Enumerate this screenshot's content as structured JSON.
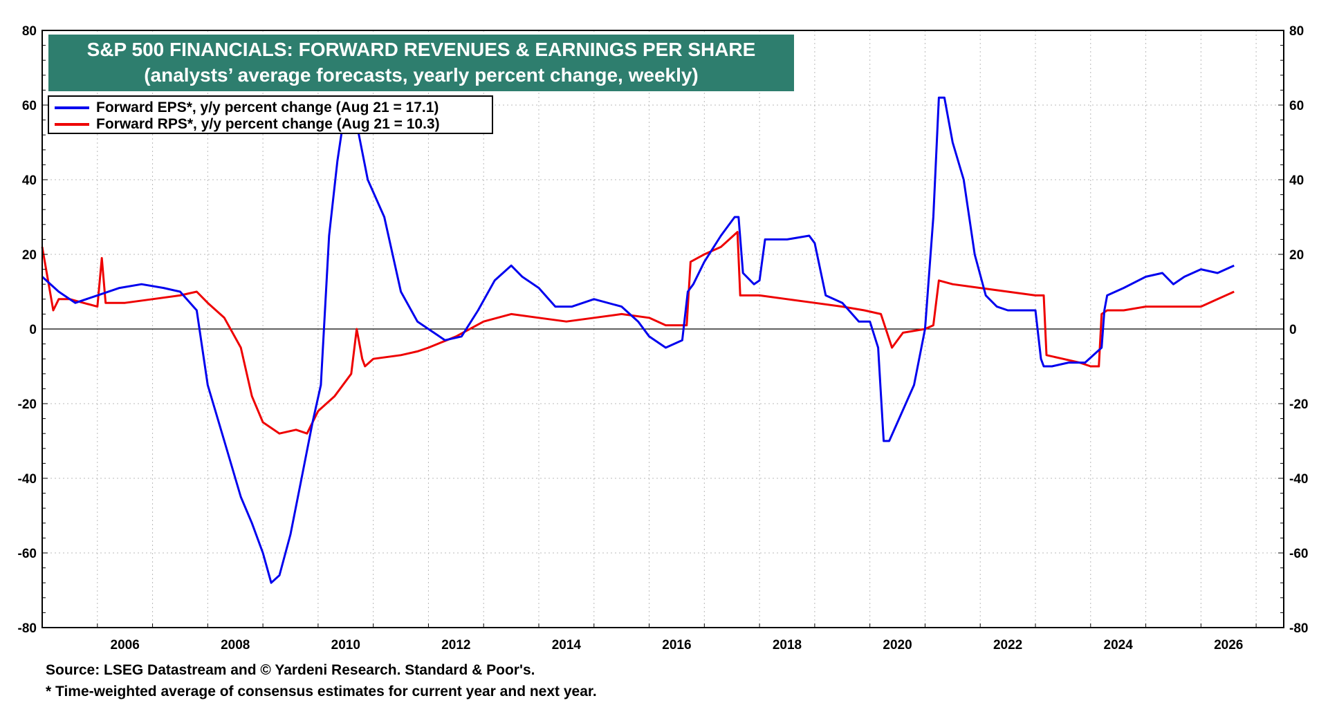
{
  "title": {
    "line1": "S&P 500 FINANCIALS: FORWARD REVENUES & EARNINGS PER SHARE",
    "line2": "(analysts’ average forecasts, yearly percent change, weekly)"
  },
  "legend": [
    {
      "label": "Forward EPS*, y/y percent change (Aug 21 = 17.1)",
      "color": "#0000ee"
    },
    {
      "label": "Forward RPS*, y/y percent change (Aug 21 = 10.3)",
      "color": "#ee0000"
    }
  ],
  "footnotes": {
    "source": "Source: LSEG Datastream and © Yardeni Research. Standard & Poor's.",
    "note": "* Time-weighted average of consensus estimates for current year and next year."
  },
  "chart_data": {
    "type": "line",
    "xlim": [
      2005.0,
      2027.5
    ],
    "ylim": [
      -80,
      80
    ],
    "x_ticks": [
      "2006",
      "2008",
      "2010",
      "2012",
      "2014",
      "2016",
      "2018",
      "2020",
      "2022",
      "2024",
      "2026"
    ],
    "y_ticks_left": [
      "80",
      "60",
      "40",
      "20",
      "0",
      "-20",
      "-40",
      "-60",
      "-80"
    ],
    "y_ticks_right": [
      "80",
      "60",
      "40",
      "20",
      "0",
      "-20",
      "-40",
      "-60",
      "-80"
    ],
    "grid": true,
    "zero_line": true,
    "legend_position": "top-left",
    "series": [
      {
        "name": "Forward EPS*, y/y percent change (Aug 21 = 17.1)",
        "color": "#0000ee",
        "x": [
          2005.0,
          2005.3,
          2005.6,
          2006.0,
          2006.4,
          2006.8,
          2007.2,
          2007.5,
          2007.8,
          2008.0,
          2008.3,
          2008.6,
          2008.8,
          2009.0,
          2009.15,
          2009.3,
          2009.5,
          2009.7,
          2009.9,
          2010.05,
          2010.2,
          2010.35,
          2010.5,
          2010.7,
          2010.9,
          2011.2,
          2011.5,
          2011.8,
          2012.0,
          2012.3,
          2012.6,
          2012.9,
          2013.2,
          2013.5,
          2013.7,
          2014.0,
          2014.3,
          2014.6,
          2015.0,
          2015.5,
          2015.8,
          2016.0,
          2016.3,
          2016.6,
          2016.7,
          2016.8,
          2017.0,
          2017.3,
          2017.55,
          2017.62,
          2017.7,
          2017.9,
          2018.0,
          2018.1,
          2018.5,
          2018.9,
          2019.0,
          2019.2,
          2019.5,
          2019.8,
          2020.0,
          2020.15,
          2020.25,
          2020.35,
          2020.5,
          2020.8,
          2021.0,
          2021.15,
          2021.25,
          2021.35,
          2021.5,
          2021.7,
          2021.9,
          2022.1,
          2022.3,
          2022.5,
          2022.8,
          2023.0,
          2023.1,
          2023.15,
          2023.3,
          2023.6,
          2023.9,
          2024.2,
          2024.25,
          2024.3,
          2024.6,
          2025.0,
          2025.3,
          2025.5,
          2025.7,
          2026.0,
          2026.3,
          2026.6
        ],
        "values": [
          14,
          10,
          7,
          9,
          11,
          12,
          11,
          10,
          5,
          -15,
          -30,
          -45,
          -52,
          -60,
          -68,
          -66,
          -55,
          -40,
          -25,
          -15,
          25,
          45,
          60,
          55,
          40,
          30,
          10,
          2,
          0,
          -3,
          -2,
          5,
          13,
          17,
          14,
          11,
          6,
          6,
          8,
          6,
          2,
          -2,
          -5,
          -3,
          10,
          12,
          18,
          25,
          30,
          30,
          15,
          12,
          13,
          24,
          24,
          25,
          23,
          9,
          7,
          2,
          2,
          -5,
          -30,
          -30,
          -25,
          -15,
          0,
          30,
          62,
          62,
          50,
          40,
          20,
          9,
          6,
          5,
          5,
          5,
          -8,
          -10,
          -10,
          -9,
          -9,
          -5,
          5,
          9,
          11,
          14,
          15,
          12,
          14,
          16,
          15,
          17
        ]
      },
      {
        "name": "Forward RPS*, y/y percent change (Aug 21 = 10.3)",
        "color": "#ee0000",
        "x": [
          2005.0,
          2005.2,
          2005.3,
          2005.5,
          2006.0,
          2006.08,
          2006.15,
          2006.5,
          2007.0,
          2007.5,
          2007.8,
          2008.0,
          2008.3,
          2008.6,
          2008.8,
          2009.0,
          2009.3,
          2009.6,
          2009.8,
          2010.0,
          2010.3,
          2010.6,
          2010.7,
          2010.8,
          2010.85,
          2011.0,
          2011.5,
          2011.8,
          2012.0,
          2012.5,
          2013.0,
          2013.5,
          2014.0,
          2014.5,
          2015.0,
          2015.5,
          2016.0,
          2016.3,
          2016.6,
          2016.68,
          2016.75,
          2017.0,
          2017.3,
          2017.6,
          2017.65,
          2018.0,
          2018.5,
          2019.0,
          2019.5,
          2019.9,
          2020.2,
          2020.4,
          2020.6,
          2021.0,
          2021.15,
          2021.25,
          2021.5,
          2022.0,
          2022.5,
          2023.0,
          2023.15,
          2023.2,
          2023.5,
          2023.8,
          2024.0,
          2024.15,
          2024.2,
          2024.3,
          2024.6,
          2025.0,
          2025.5,
          2026.0,
          2026.3,
          2026.6
        ],
        "values": [
          22,
          5,
          8,
          8,
          6,
          19,
          7,
          7,
          8,
          9,
          10,
          7,
          3,
          -5,
          -18,
          -25,
          -28,
          -27,
          -28,
          -22,
          -18,
          -12,
          0,
          -8,
          -10,
          -8,
          -7,
          -6,
          -5,
          -2,
          2,
          4,
          3,
          2,
          3,
          4,
          3,
          1,
          1,
          1,
          18,
          20,
          22,
          26,
          9,
          9,
          8,
          7,
          6,
          5,
          4,
          -5,
          -1,
          0,
          1,
          13,
          12,
          11,
          10,
          9,
          9,
          -7,
          -8,
          -9,
          -10,
          -10,
          4,
          5,
          5,
          6,
          6,
          6,
          8,
          10
        ]
      }
    ]
  }
}
